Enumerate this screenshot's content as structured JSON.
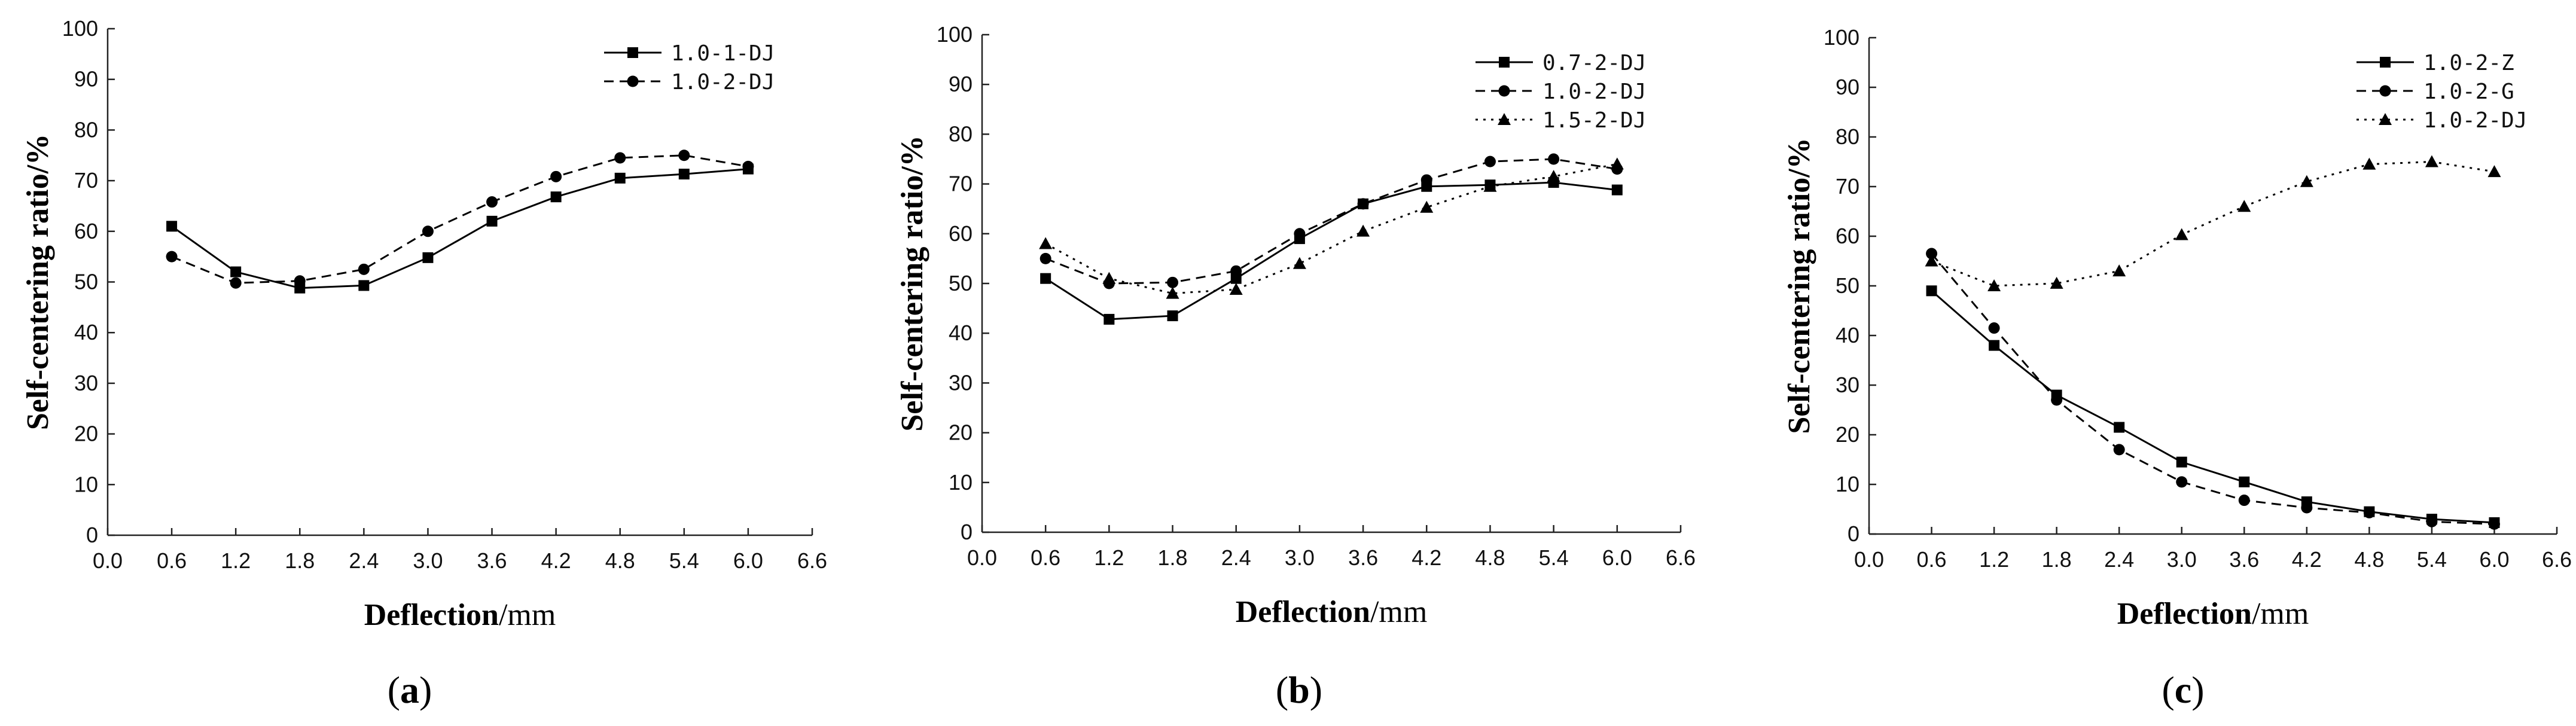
{
  "figure": {
    "captions": [
      {
        "open": "(",
        "letter": "a",
        "close": ")"
      },
      {
        "open": "(",
        "letter": "b",
        "close": ")"
      },
      {
        "open": "(",
        "letter": "c",
        "close": ")"
      }
    ]
  },
  "chart_data": [
    {
      "type": "line",
      "title": "",
      "xlabel_bold": "Deflection",
      "xlabel_unit": "/mm",
      "ylabel": "Self-centering ratio/%",
      "xlim": [
        0.0,
        6.6
      ],
      "ylim": [
        0,
        100
      ],
      "xticks": [
        "0.0",
        "0.6",
        "1.2",
        "1.8",
        "2.4",
        "3.0",
        "3.6",
        "4.2",
        "4.8",
        "5.4",
        "6.0",
        "6.6"
      ],
      "yticks": [
        "0",
        "10",
        "20",
        "30",
        "40",
        "50",
        "60",
        "70",
        "80",
        "90",
        "100"
      ],
      "legend_position": "top-right",
      "x": [
        0.6,
        1.2,
        1.8,
        2.4,
        3.0,
        3.6,
        4.2,
        4.8,
        5.4,
        6.0
      ],
      "series": [
        {
          "name": "1.0-1-DJ",
          "marker": "square",
          "dash": "solid",
          "values": [
            61,
            52,
            48.8,
            49.3,
            54.8,
            62,
            66.8,
            70.5,
            71.3,
            72.3
          ]
        },
        {
          "name": "1.0-2-DJ",
          "marker": "circle",
          "dash": "dashed",
          "values": [
            55,
            49.8,
            50.2,
            52.5,
            60,
            65.8,
            70.8,
            74.5,
            75,
            72.8
          ]
        }
      ]
    },
    {
      "type": "line",
      "title": "",
      "xlabel_bold": "Deflection",
      "xlabel_unit": "/mm",
      "ylabel": "Self-centering ratio/%",
      "xlim": [
        0.0,
        6.6
      ],
      "ylim": [
        0,
        100
      ],
      "xticks": [
        "0.0",
        "0.6",
        "1.2",
        "1.8",
        "2.4",
        "3.0",
        "3.6",
        "4.2",
        "4.8",
        "5.4",
        "6.0",
        "6.6"
      ],
      "yticks": [
        "0",
        "10",
        "20",
        "30",
        "40",
        "50",
        "60",
        "70",
        "80",
        "90",
        "100"
      ],
      "legend_position": "top-right",
      "x": [
        0.6,
        1.2,
        1.8,
        2.4,
        3.0,
        3.6,
        4.2,
        4.8,
        5.4,
        6.0
      ],
      "series": [
        {
          "name": "0.7-2-DJ",
          "marker": "square",
          "dash": "solid",
          "values": [
            51,
            42.8,
            43.5,
            51,
            59,
            66,
            69.5,
            69.8,
            70.3,
            68.8
          ]
        },
        {
          "name": "1.0-2-DJ",
          "marker": "circle",
          "dash": "dashed",
          "values": [
            55,
            50,
            50.2,
            52.5,
            60,
            66,
            70.8,
            74.5,
            75,
            73
          ]
        },
        {
          "name": "1.5-2-DJ",
          "marker": "triangle",
          "dash": "dotted",
          "values": [
            58,
            51,
            48,
            48.8,
            54,
            60.5,
            65.3,
            69.5,
            71.5,
            74
          ]
        }
      ]
    },
    {
      "type": "line",
      "title": "",
      "xlabel_bold": "Deflection",
      "xlabel_unit": "/mm",
      "ylabel": "Self-centering ratio/%",
      "xlim": [
        0.0,
        6.6
      ],
      "ylim": [
        0,
        100
      ],
      "xticks": [
        "0.0",
        "0.6",
        "1.2",
        "1.8",
        "2.4",
        "3.0",
        "3.6",
        "4.2",
        "4.8",
        "5.4",
        "6.0",
        "6.6"
      ],
      "yticks": [
        "0",
        "10",
        "20",
        "30",
        "40",
        "50",
        "60",
        "70",
        "80",
        "90",
        "100"
      ],
      "legend_position": "top-right",
      "x": [
        0.6,
        1.2,
        1.8,
        2.4,
        3.0,
        3.6,
        4.2,
        4.8,
        5.4,
        6.0
      ],
      "series": [
        {
          "name": "1.0-2-Z",
          "marker": "square",
          "dash": "solid",
          "values": [
            49,
            38,
            28,
            21.5,
            14.5,
            10.5,
            6.5,
            4.5,
            3,
            2.3
          ]
        },
        {
          "name": "1.0-2-G",
          "marker": "circle",
          "dash": "dashed",
          "values": [
            56.5,
            41.5,
            27,
            17,
            10.5,
            6.8,
            5.3,
            4.3,
            2.5,
            2
          ]
        },
        {
          "name": "1.0-2-DJ",
          "marker": "triangle",
          "dash": "dotted",
          "values": [
            55,
            50,
            50.5,
            53,
            60.3,
            66,
            71,
            74.5,
            75,
            73
          ]
        }
      ]
    }
  ]
}
